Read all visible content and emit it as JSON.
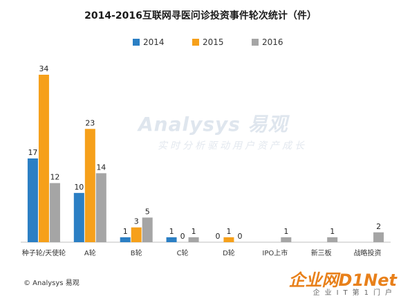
{
  "chart_data": {
    "type": "bar",
    "title": "2014-2016互联网寻医问诊投资事件轮次统计（件）",
    "categories": [
      "种子轮/天使轮",
      "A轮",
      "B轮",
      "C轮",
      "D轮",
      "IPO上市",
      "新三板",
      "战略投资"
    ],
    "series": [
      {
        "name": "2014",
        "color": "#2b7fc4",
        "values": [
          17,
          10,
          1,
          1,
          0,
          null,
          null,
          null
        ]
      },
      {
        "name": "2015",
        "color": "#f6a01a",
        "values": [
          34,
          23,
          3,
          0,
          1,
          null,
          null,
          null
        ]
      },
      {
        "name": "2016",
        "color": "#a5a5a5",
        "values": [
          12,
          14,
          5,
          1,
          0,
          1,
          1,
          2
        ]
      }
    ],
    "ylim": [
      0,
      34
    ],
    "grid": false,
    "legend_position": "top"
  },
  "watermark": {
    "main": "Analysys 易观",
    "sub": "实时分析驱动用户资产成长"
  },
  "footer": {
    "source": "© Analysys 易观"
  },
  "site_logo": {
    "main": "企业网D1Net",
    "sub": "企业IT第1门户"
  }
}
